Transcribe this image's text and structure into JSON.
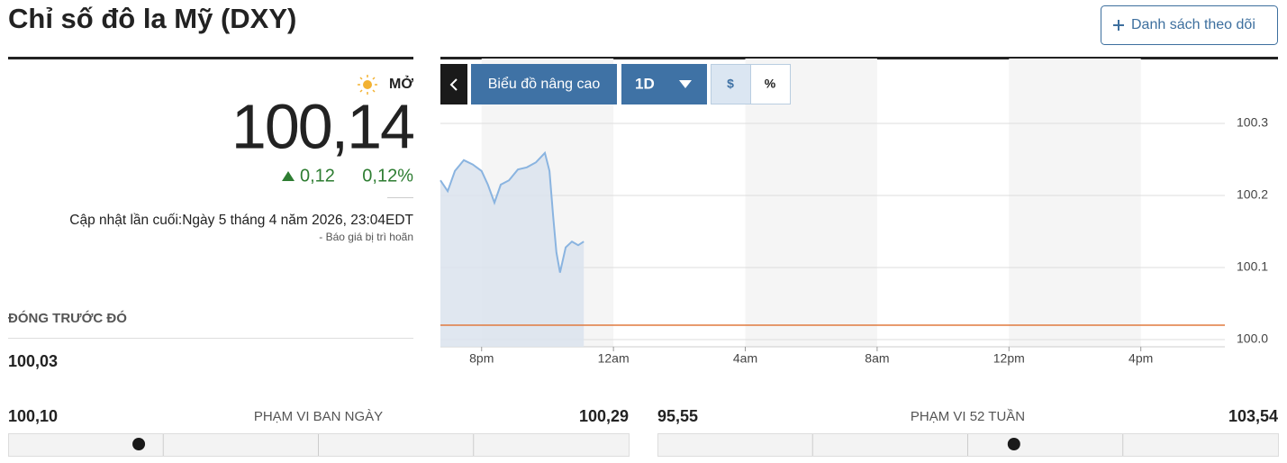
{
  "header": {
    "title": "Chỉ số đô la Mỹ (DXY)",
    "watchlist_button": "Danh sách theo dõi"
  },
  "quote": {
    "status": "MỞ",
    "price": "100,14",
    "change": "0,12",
    "change_percent": "0,12%",
    "last_updated": "Cập nhật lần cuối:Ngày 5 tháng 4 năm 2026, 23:04EDT",
    "delay_note": "- Báo giá bị trì hoãn",
    "previous_close_label": "ĐÓNG TRƯỚC ĐÓ",
    "previous_close": "100,03"
  },
  "toolbar": {
    "advanced_chart": "Biểu đồ nâng cao",
    "interval": "1D",
    "currency": "$",
    "percent": "%"
  },
  "chart_data": {
    "type": "line",
    "x": [
      18.75,
      18.97,
      19.19,
      19.46,
      19.73,
      20.0,
      20.19,
      20.39,
      20.58,
      20.83,
      21.1,
      21.37,
      21.65,
      21.92,
      22.06,
      22.17,
      22.27,
      22.38,
      22.55,
      22.74,
      22.93,
      23.1
    ],
    "series": [
      {
        "color": "#8ab4e0",
        "values": [
          100.221,
          100.206,
          100.234,
          100.249,
          100.243,
          100.234,
          100.215,
          100.19,
          100.215,
          100.221,
          100.236,
          100.239,
          100.246,
          100.259,
          100.234,
          100.171,
          100.121,
          100.093,
          100.128,
          100.136,
          100.131,
          100.136
        ]
      }
    ],
    "xlim": [
      18.75,
      42.55
    ],
    "ylim": [
      99.99,
      100.39
    ],
    "xticks": [
      {
        "value": 20,
        "label": "8pm"
      },
      {
        "value": 24,
        "label": "12am"
      },
      {
        "value": 28,
        "label": "4am"
      },
      {
        "value": 32,
        "label": "8am"
      },
      {
        "value": 36,
        "label": "12pm"
      },
      {
        "value": 40,
        "label": "4pm"
      }
    ],
    "yticks": [
      {
        "value": 100.0,
        "label": "100.0"
      },
      100.1,
      100.2,
      100.3
    ],
    "reference_line": 100.02,
    "reference_color": "#e07a3f",
    "grid": true
  },
  "ranges": [
    {
      "label": "PHẠM VI BAN NGÀY",
      "low": "100,10",
      "high": "100,29"
    },
    {
      "label": "PHẠM VI 52 TUẦN",
      "low": "95,55",
      "high": "103,54"
    }
  ]
}
